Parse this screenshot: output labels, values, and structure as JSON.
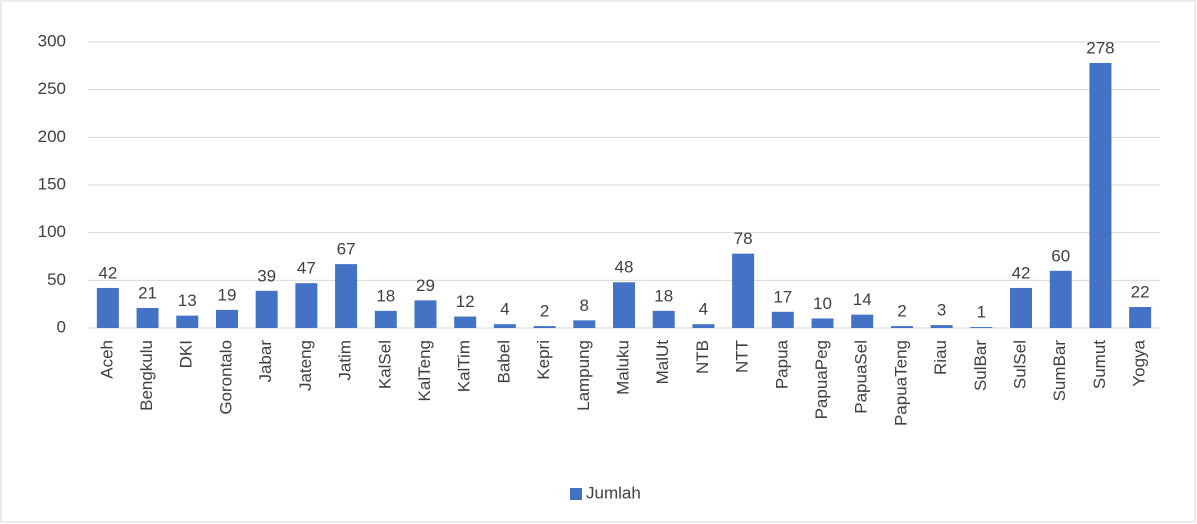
{
  "chart_data": {
    "type": "bar",
    "categories": [
      "Aceh",
      "Bengkulu",
      "DKI",
      "Gorontalo",
      "Jabar",
      "Jateng",
      "Jatim",
      "KalSel",
      "KalTeng",
      "KalTim",
      "Babel",
      "Kepri",
      "Lampung",
      "Maluku",
      "MalUt",
      "NTB",
      "NTT",
      "Papua",
      "PapuaPeg",
      "PapuaSel",
      "PapuaTeng",
      "Riau",
      "SulBar",
      "SulSel",
      "SumBar",
      "Sumut",
      "Yogya"
    ],
    "series": [
      {
        "name": "Jumlah",
        "color": "#4472c4",
        "values": [
          42,
          21,
          13,
          19,
          39,
          47,
          67,
          18,
          29,
          12,
          4,
          2,
          8,
          48,
          18,
          4,
          78,
          17,
          10,
          14,
          2,
          3,
          1,
          42,
          60,
          278,
          22
        ]
      }
    ],
    "ylim": [
      0,
      300
    ],
    "yticks": [
      0,
      50,
      100,
      150,
      200,
      250,
      300
    ],
    "grid": true,
    "legend": "bottom"
  }
}
